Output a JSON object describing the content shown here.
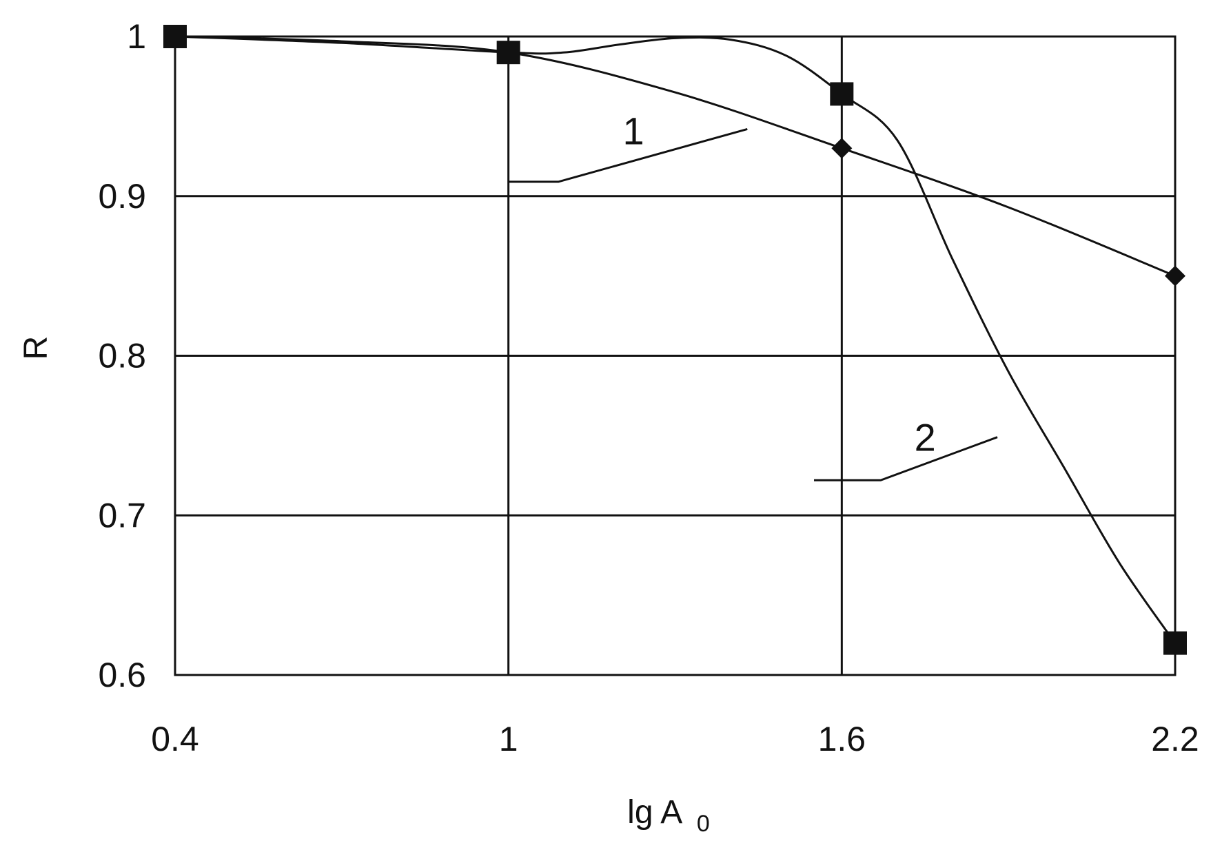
{
  "chart_data": {
    "type": "line",
    "title": "",
    "xlabel": "lg A",
    "xlabel_subscript": "0",
    "ylabel": "R",
    "xlim": [
      0.4,
      2.2
    ],
    "ylim": [
      0.6,
      1.0
    ],
    "x_ticks": [
      0.4,
      1.0,
      1.6,
      2.2
    ],
    "x_tick_labels": [
      "0.4",
      "1",
      "1.6",
      "2.2"
    ],
    "y_ticks": [
      0.6,
      0.7,
      0.8,
      0.9,
      1.0
    ],
    "y_tick_labels": [
      "0.6",
      "0.7",
      "0.8",
      "0.9",
      "1"
    ],
    "grid": true,
    "legend": "none",
    "series": [
      {
        "label": "1",
        "marker": "diamond",
        "color": "#111111",
        "x": [
          0.4,
          1.0,
          1.6,
          2.2
        ],
        "y": [
          1.0,
          0.99,
          0.93,
          0.85
        ],
        "curve_x": [
          0.4,
          0.7,
          1.0,
          1.3,
          1.6,
          1.9,
          2.2
        ],
        "curve_y": [
          1.0,
          0.997,
          0.99,
          0.965,
          0.93,
          0.893,
          0.85
        ]
      },
      {
        "label": "2",
        "marker": "square",
        "color": "#111111",
        "x": [
          0.4,
          1.0,
          1.6,
          2.2
        ],
        "y": [
          1.0,
          0.99,
          0.964,
          0.62
        ],
        "curve_x": [
          0.4,
          0.7,
          1.0,
          1.1,
          1.2,
          1.3,
          1.4,
          1.5,
          1.6,
          1.7,
          1.8,
          1.9,
          2.0,
          2.1,
          2.2
        ],
        "curve_y": [
          1.0,
          0.996,
          0.99,
          0.99,
          0.995,
          0.999,
          0.998,
          0.988,
          0.964,
          0.935,
          0.86,
          0.79,
          0.73,
          0.67,
          0.62
        ]
      }
    ],
    "annotations": [
      {
        "text": "1",
        "at_x": 1.225,
        "at_y": 0.941,
        "leader": [
          [
            1.0,
            0.909
          ],
          [
            1.09,
            0.909
          ],
          [
            1.43,
            0.942
          ]
        ]
      },
      {
        "text": "2",
        "at_x": 1.75,
        "at_y": 0.749,
        "leader": [
          [
            1.55,
            0.722
          ],
          [
            1.67,
            0.722
          ],
          [
            1.88,
            0.749
          ]
        ]
      }
    ]
  }
}
